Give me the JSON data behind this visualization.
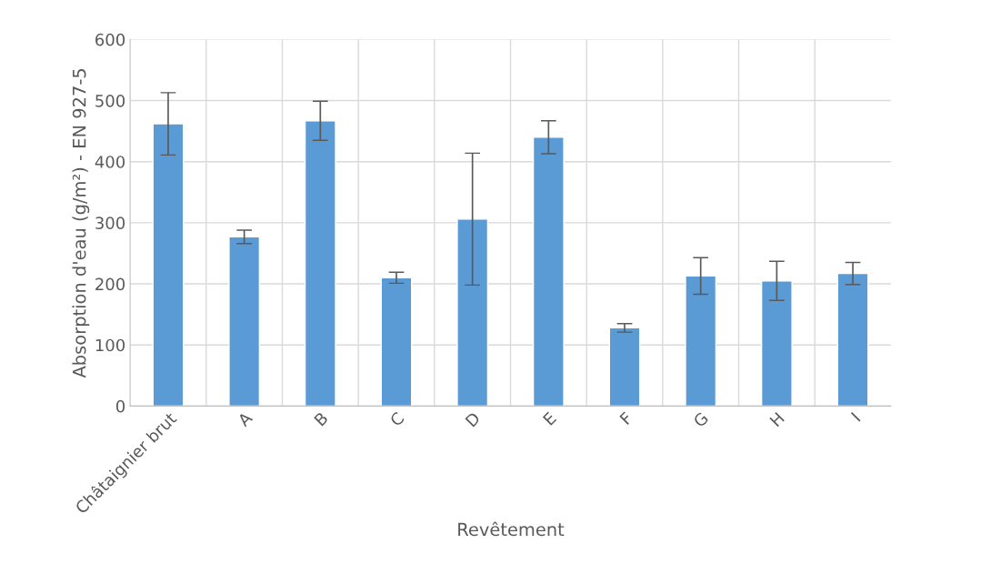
{
  "chart_data": {
    "type": "bar",
    "xlabel": "Revêtement",
    "ylabel": "Absorption d'eau (g/m²) - EN 927-5",
    "categories": [
      "Châtaignier brut",
      "A",
      "B",
      "C",
      "D",
      "E",
      "F",
      "G",
      "H",
      "I"
    ],
    "values": [
      462,
      277,
      467,
      210,
      306,
      440,
      128,
      213,
      205,
      217
    ],
    "errors": [
      51,
      11,
      32,
      9,
      108,
      27,
      7,
      30,
      32,
      18
    ],
    "color": "#5b9bd5",
    "ylim": [
      0,
      600
    ],
    "yticks": [
      0,
      100,
      200,
      300,
      400,
      500,
      600
    ],
    "grid": true
  }
}
